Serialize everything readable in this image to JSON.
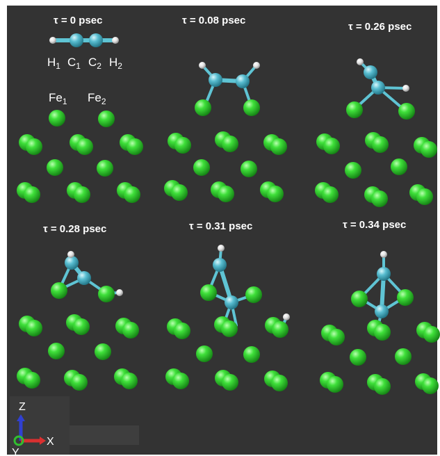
{
  "panels": [
    {
      "label": "τ = 0 psec"
    },
    {
      "label": "τ = 0.08 psec"
    },
    {
      "label": "τ = 0.26 psec"
    },
    {
      "label": "τ = 0.28 psec"
    },
    {
      "label": "τ = 0.31 psec"
    },
    {
      "label": "τ = 0.34 psec"
    }
  ],
  "atom_labels": {
    "h1": "H",
    "h1_sub": "1",
    "c1": "C",
    "c1_sub": "1",
    "c2": "C",
    "c2_sub": "2",
    "h2": "H",
    "h2_sub": "2",
    "fe1": "Fe",
    "fe1_sub": "1",
    "fe2": "Fe",
    "fe2_sub": "2"
  },
  "axes": {
    "z": "Z",
    "x": "X",
    "y": "Y"
  },
  "colors": {
    "background": "#333333",
    "fe": "#2ecc2e",
    "carbon": "#4fb8cc",
    "hydrogen": "#f0f0f0",
    "bond": "#5fc4d4",
    "axis_x": "#d93030",
    "axis_y": "#30c030",
    "axis_z": "#3040d0"
  }
}
